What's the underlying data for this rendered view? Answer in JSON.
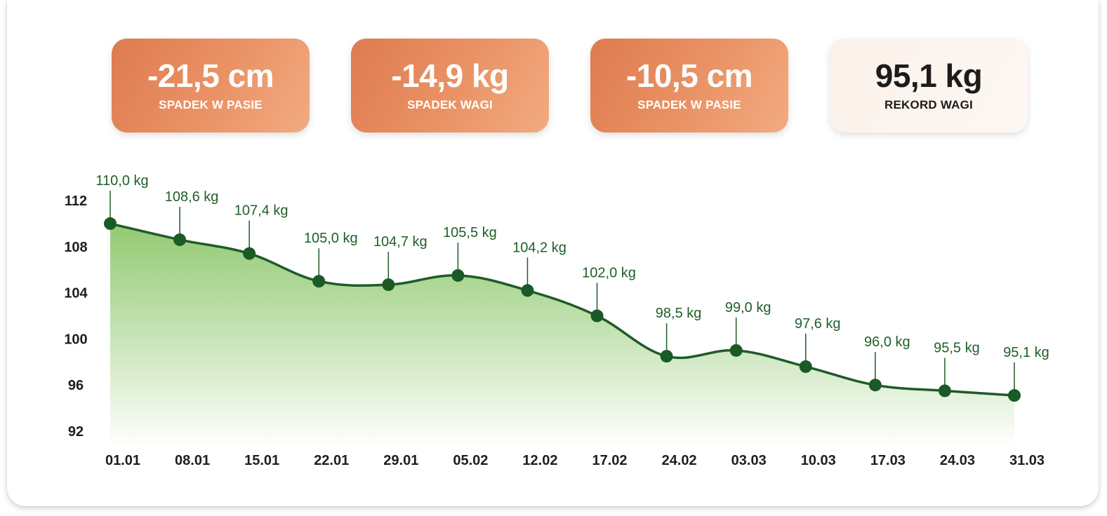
{
  "stats": [
    {
      "value": "-21,5 cm",
      "label": "SPADEK W PASIE",
      "style": "orange"
    },
    {
      "value": "-14,9 kg",
      "label": "SPADEK WAGI",
      "style": "orange"
    },
    {
      "value": "-10,5 cm",
      "label": "SPADEK W PASIE",
      "style": "orange"
    },
    {
      "value": "95,1 kg",
      "label": "REKORD WAGI",
      "style": "light"
    }
  ],
  "chart_data": {
    "type": "area",
    "categories": [
      "01.01",
      "08.01",
      "15.01",
      "22.01",
      "29.01",
      "05.02",
      "12.02",
      "17.02",
      "24.02",
      "03.03",
      "10.03",
      "17.03",
      "24.03",
      "31.03"
    ],
    "values": [
      110.0,
      108.6,
      107.4,
      105.0,
      104.7,
      105.5,
      104.2,
      102.0,
      98.5,
      99.0,
      97.6,
      96.0,
      95.5,
      95.1
    ],
    "data_labels": [
      "110,0 kg",
      "108,6 kg",
      "107,4 kg",
      "105,0 kg",
      "104,7 kg",
      "105,5 kg",
      "104,2 kg",
      "102,0 kg",
      "98,5 kg",
      "99,0 kg",
      "97,6 kg",
      "96,0 kg",
      "95,5 kg",
      "95,1 kg"
    ],
    "y_ticks": [
      112,
      108,
      104,
      100,
      96,
      92
    ],
    "ylim": [
      92,
      112
    ],
    "grid": false,
    "colors": {
      "line": "#1f5b2a",
      "marker": "#1a5a26",
      "fill_top": "#8cc76a",
      "fill_bottom": "#ffffff",
      "label": "#1f5f2a"
    }
  }
}
